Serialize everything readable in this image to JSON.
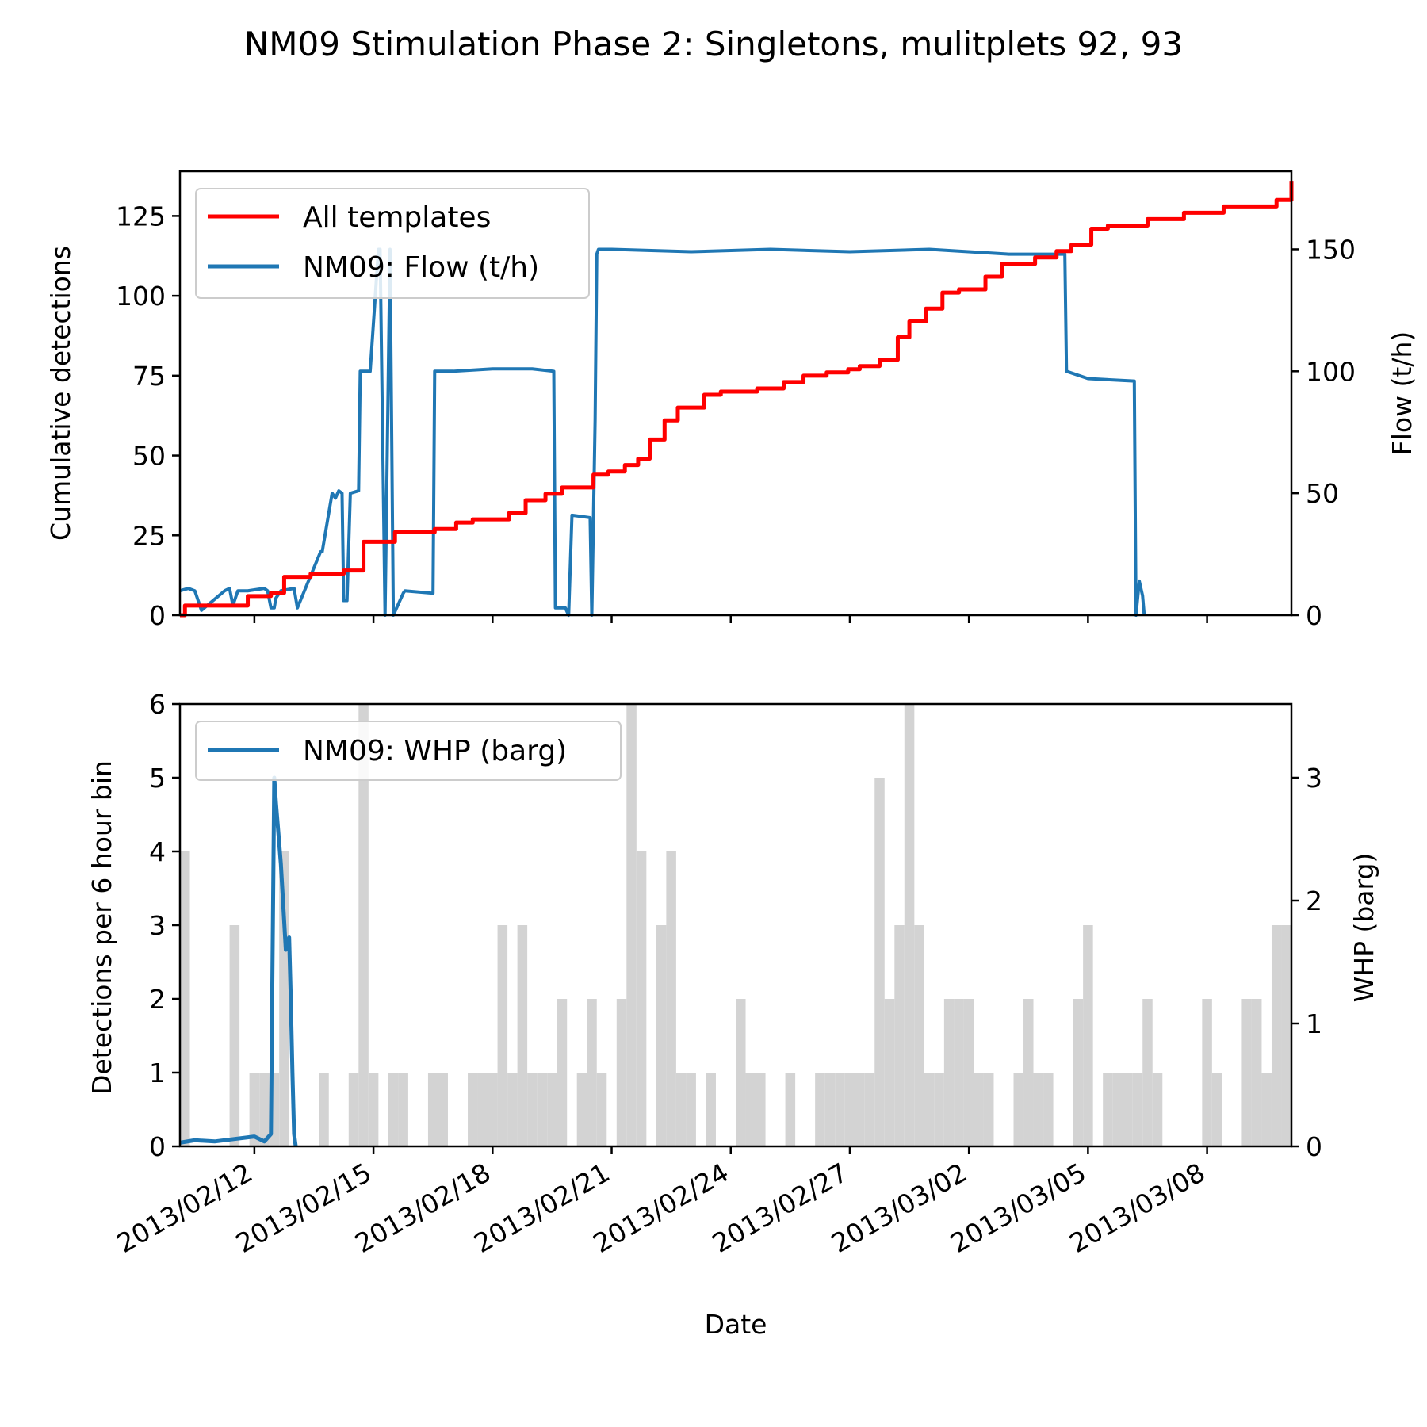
{
  "figure": {
    "title": "NM09 Stimulation Phase 2: Singletons, mulitplets 92, 93"
  },
  "chart_data": [
    {
      "type": "line",
      "panel": "top",
      "xlabel": "",
      "ylabel": "Cumulative detections",
      "ylabel_right": "Flow (t/h)",
      "x_tick_labels": [
        "2013/02/12",
        "2013/02/15",
        "2013/02/18",
        "2013/02/21",
        "2013/02/24",
        "2013/02/27",
        "2013/03/02",
        "2013/03/05",
        "2013/03/08"
      ],
      "x_range": [
        "2013/02/10 03:00",
        "2013/03/10 03:00"
      ],
      "ylim": [
        0,
        139
      ],
      "ylim_right": [
        0,
        182
      ],
      "yticks": [
        0,
        25,
        50,
        75,
        100,
        125
      ],
      "yticks_right": [
        0,
        50,
        100,
        150
      ],
      "legend_position": "upper-left",
      "grid": false,
      "series": [
        {
          "name": "All templates",
          "color": "#ff0000",
          "axis": "left",
          "x": [
            "2013/02/10 03:00",
            "2013/02/10 06:00",
            "2013/02/11 09:00",
            "2013/02/11 20:00",
            "2013/02/12 10:00",
            "2013/02/12 18:00",
            "2013/02/13 10:00",
            "2013/02/13 20:00",
            "2013/02/14 06:00",
            "2013/02/14 18:00",
            "2013/02/15 13:00",
            "2013/02/16 13:00",
            "2013/02/17 02:00",
            "2013/02/17 12:00",
            "2013/02/18 10:00",
            "2013/02/18 20:00",
            "2013/02/19 08:00",
            "2013/02/19 18:00",
            "2013/02/20 13:00",
            "2013/02/20 22:00",
            "2013/02/21 08:00",
            "2013/02/21 16:00",
            "2013/02/21 23:00",
            "2013/02/22 08:00",
            "2013/02/22 16:00",
            "2013/02/23 08:00",
            "2013/02/23 18:00",
            "2013/02/24 16:00",
            "2013/02/25 08:00",
            "2013/02/25 20:00",
            "2013/02/26 10:00",
            "2013/02/26 23:00",
            "2013/02/27 06:00",
            "2013/02/27 18:00",
            "2013/02/28 05:00",
            "2013/02/28 12:00",
            "2013/02/28 22:00",
            "2013/03/01 08:00",
            "2013/03/01 18:00",
            "2013/03/02 10:00",
            "2013/03/02 20:00",
            "2013/03/03 06:00",
            "2013/03/03 16:00",
            "2013/03/04 05:00",
            "2013/03/04 14:00",
            "2013/03/05 02:00",
            "2013/03/05 12:00",
            "2013/03/06 12:00",
            "2013/03/07 10:00",
            "2013/03/08 10:00",
            "2013/03/09 06:00",
            "2013/03/09 18:00",
            "2013/03/10 03:00"
          ],
          "values": [
            0,
            3,
            3,
            6,
            7,
            12,
            13,
            13,
            14,
            23,
            26,
            27,
            29,
            30,
            32,
            36,
            38,
            40,
            44,
            45,
            47,
            49,
            55,
            61,
            65,
            69,
            70,
            71,
            73,
            75,
            76,
            77,
            78,
            80,
            87,
            92,
            96,
            101,
            102,
            106,
            110,
            110,
            112,
            114,
            116,
            121,
            122,
            124,
            126,
            128,
            128,
            130,
            136
          ]
        },
        {
          "name": "NM09: Flow (t/h)",
          "color": "#1f77b4",
          "axis": "right",
          "x": [
            "2013/02/10 03:00",
            "2013/02/10 08:00",
            "2013/02/10 12:00",
            "2013/02/10 16:00",
            "2013/02/11 06:00",
            "2013/02/11 09:00",
            "2013/02/11 11:00",
            "2013/02/11 14:00",
            "2013/02/11 20:00",
            "2013/02/12 06:00",
            "2013/02/12 08:00",
            "2013/02/12 10:00",
            "2013/02/12 12:00",
            "2013/02/12 13:00",
            "2013/02/12 16:00",
            "2013/02/13 00:00",
            "2013/02/13 02:00",
            "2013/02/13 16:00",
            "2013/02/13 17:00",
            "2013/02/13 23:00",
            "2013/02/14 01:00",
            "2013/02/14 03:00",
            "2013/02/14 05:00",
            "2013/02/14 06:00",
            "2013/02/14 08:00",
            "2013/02/14 10:00",
            "2013/02/14 15:00",
            "2013/02/14 16:00",
            "2013/02/14 22:00",
            "2013/02/15 03:00",
            "2013/02/15 04:00",
            "2013/02/15 07:00",
            "2013/02/15 10:00",
            "2013/02/15 12:00",
            "2013/02/15 18:00",
            "2013/02/15 19:00",
            "2013/02/16 12:00",
            "2013/02/16 13:00",
            "2013/02/17 00:00",
            "2013/02/18 00:00",
            "2013/02/19 00:00",
            "2013/02/19 13:00",
            "2013/02/19 14:00",
            "2013/02/19 20:00",
            "2013/02/19 22:00",
            "2013/02/20 00:00",
            "2013/02/20 11:00",
            "2013/02/20 12:00",
            "2013/02/20 14:00",
            "2013/02/20 15:00",
            "2013/02/20 16:00",
            "2013/02/21 00:00",
            "2013/02/23 00:00",
            "2013/02/25 00:00",
            "2013/02/27 00:00",
            "2013/03/01 00:00",
            "2013/03/03 00:00",
            "2013/03/04 10:00",
            "2013/03/04 11:00",
            "2013/03/05 00:00",
            "2013/03/06 04:00",
            "2013/03/06 05:00",
            "2013/03/06 07:00",
            "2013/03/06 09:00",
            "2013/03/06 10:00"
          ],
          "values": [
            10,
            11,
            10,
            2,
            10,
            11,
            4,
            10,
            10,
            11,
            10,
            3,
            3,
            7,
            10,
            11,
            3,
            26,
            26,
            50,
            48,
            51,
            50,
            6,
            6,
            50,
            51,
            100,
            100,
            150,
            150,
            0,
            150,
            0,
            9,
            10,
            9,
            100,
            100,
            101,
            101,
            100,
            3,
            3,
            0,
            41,
            40,
            0,
            80,
            148,
            150,
            150,
            149,
            150,
            149,
            150,
            148,
            148,
            100,
            97,
            96,
            0,
            14,
            8,
            0
          ]
        }
      ]
    },
    {
      "type": "bar",
      "panel": "bottom",
      "xlabel": "Date",
      "ylabel": "Detections per 6 hour bin",
      "ylabel_right": "WHP (barg)",
      "x_tick_labels": [
        "2013/02/12",
        "2013/02/15",
        "2013/02/18",
        "2013/02/21",
        "2013/02/24",
        "2013/02/27",
        "2013/03/02",
        "2013/03/05",
        "2013/03/08"
      ],
      "ylim": [
        0,
        6
      ],
      "ylim_right": [
        0,
        3.6
      ],
      "yticks": [
        0,
        1,
        2,
        3,
        4,
        5,
        6
      ],
      "yticks_right": [
        0,
        1,
        2,
        3
      ],
      "legend_position": "upper-left",
      "grid": false,
      "bar_color": "#d3d3d3",
      "bar_width": "6 hours",
      "series": [
        {
          "name": "Detections per 6 hour bin",
          "color": "#d3d3d3",
          "x": [
            "2013/02/10 03:00",
            "2013/02/11 09:00",
            "2013/02/11 21:00",
            "2013/02/12 03:00",
            "2013/02/12 09:00",
            "2013/02/12 15:00",
            "2013/02/13 15:00",
            "2013/02/14 09:00",
            "2013/02/14 15:00",
            "2013/02/14 21:00",
            "2013/02/15 09:00",
            "2013/02/15 15:00",
            "2013/02/16 09:00",
            "2013/02/16 15:00",
            "2013/02/17 09:00",
            "2013/02/17 15:00",
            "2013/02/17 21:00",
            "2013/02/18 03:00",
            "2013/02/18 09:00",
            "2013/02/18 15:00",
            "2013/02/18 21:00",
            "2013/02/19 03:00",
            "2013/02/19 09:00",
            "2013/02/19 15:00",
            "2013/02/20 03:00",
            "2013/02/20 09:00",
            "2013/02/20 15:00",
            "2013/02/21 03:00",
            "2013/02/21 09:00",
            "2013/02/21 15:00",
            "2013/02/22 03:00",
            "2013/02/22 09:00",
            "2013/02/22 15:00",
            "2013/02/22 21:00",
            "2013/02/23 09:00",
            "2013/02/24 03:00",
            "2013/02/24 09:00",
            "2013/02/24 15:00",
            "2013/02/25 09:00",
            "2013/02/26 03:00",
            "2013/02/26 09:00",
            "2013/02/26 15:00",
            "2013/02/26 21:00",
            "2013/02/27 03:00",
            "2013/02/27 09:00",
            "2013/02/27 15:00",
            "2013/02/27 21:00",
            "2013/02/28 03:00",
            "2013/02/28 09:00",
            "2013/02/28 15:00",
            "2013/02/28 21:00",
            "2013/03/01 03:00",
            "2013/03/01 09:00",
            "2013/03/01 15:00",
            "2013/03/01 21:00",
            "2013/03/02 03:00",
            "2013/03/02 09:00",
            "2013/03/03 03:00",
            "2013/03/03 09:00",
            "2013/03/03 15:00",
            "2013/03/03 21:00",
            "2013/03/04 15:00",
            "2013/03/04 21:00",
            "2013/03/05 09:00",
            "2013/03/05 15:00",
            "2013/03/05 21:00",
            "2013/03/06 03:00",
            "2013/03/06 09:00",
            "2013/03/06 15:00",
            "2013/03/07 21:00",
            "2013/03/08 03:00",
            "2013/03/08 21:00",
            "2013/03/09 03:00",
            "2013/03/09 09:00",
            "2013/03/09 15:00",
            "2013/03/09 21:00"
          ],
          "values": [
            4,
            3,
            1,
            1,
            1,
            4,
            1,
            1,
            6,
            1,
            1,
            1,
            1,
            1,
            1,
            1,
            1,
            3,
            1,
            3,
            1,
            1,
            1,
            2,
            1,
            2,
            1,
            2,
            6,
            4,
            3,
            4,
            1,
            1,
            1,
            2,
            1,
            1,
            1,
            1,
            1,
            1,
            1,
            1,
            1,
            5,
            2,
            3,
            6,
            3,
            1,
            1,
            2,
            2,
            2,
            1,
            1,
            1,
            2,
            1,
            1,
            2,
            3,
            1,
            1,
            1,
            1,
            2,
            1,
            2,
            1,
            2,
            2,
            1,
            3,
            3
          ]
        },
        {
          "name": "NM09: WHP (barg)",
          "color": "#1f77b4",
          "axis": "right",
          "x": [
            "2013/02/10 03:00",
            "2013/02/10 12:00",
            "2013/02/11 00:00",
            "2013/02/11 12:00",
            "2013/02/12 00:00",
            "2013/02/12 06:00",
            "2013/02/12 10:00",
            "2013/02/12 12:00",
            "2013/02/12 13:00",
            "2013/02/12 16:00",
            "2013/02/12 19:00",
            "2013/02/12 21:00",
            "2013/02/12 22:00",
            "2013/02/12 23:00",
            "2013/02/13 00:00",
            "2013/02/13 01:00"
          ],
          "values": [
            0.03,
            0.05,
            0.04,
            0.06,
            0.08,
            0.04,
            0.1,
            3.0,
            2.8,
            2.3,
            1.6,
            1.7,
            1.2,
            0.6,
            0.1,
            0.0
          ]
        }
      ]
    }
  ]
}
